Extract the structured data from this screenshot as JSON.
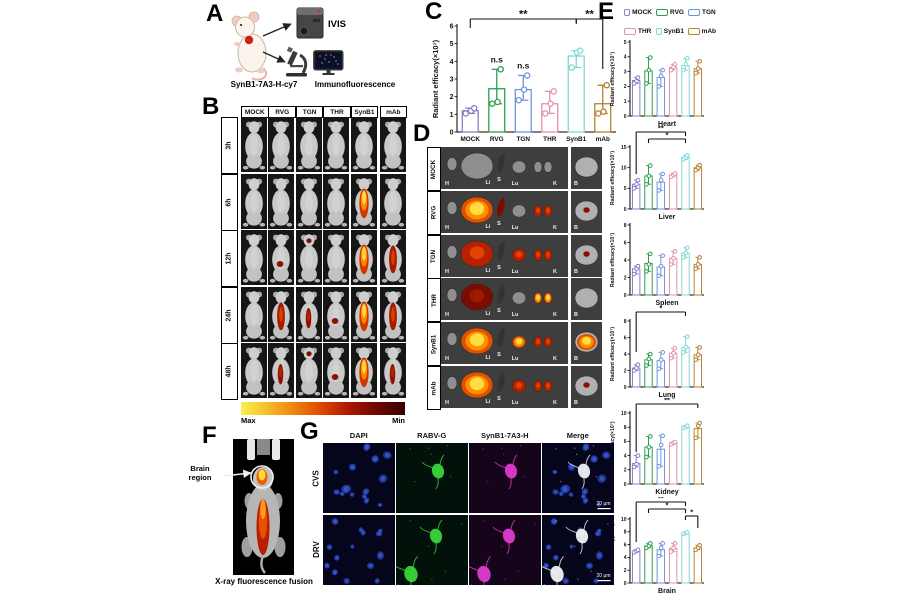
{
  "panels": {
    "a": "A",
    "b": "B",
    "c": "C",
    "d": "D",
    "e": "E",
    "f": "F",
    "g": "G"
  },
  "groups": [
    "MOCK",
    "RVG",
    "TGN",
    "THR",
    "SynB1",
    "mAb"
  ],
  "colors": {
    "MOCK": "#8a7ec9",
    "RVG": "#2ca04c",
    "TGN": "#6b96dd",
    "THR": "#e292a8",
    "SynB1": "#82d7d5",
    "mAb": "#b5822f"
  },
  "panelA": {
    "ivis": "IVIS",
    "probe": "SynB1-7A3-H-cy7",
    "immuno": "Immunofluorescence"
  },
  "panelB": {
    "columns": [
      "MOCK",
      "RVG",
      "TGN",
      "THR",
      "SynB1",
      "mAb"
    ],
    "rows": [
      "3h",
      "6h",
      "12h",
      "24h",
      "48h"
    ],
    "signals": [
      [
        null,
        null,
        null,
        null,
        null,
        null
      ],
      [
        null,
        null,
        null,
        null,
        "bright",
        null
      ],
      [
        null,
        "spot",
        "dot",
        null,
        "bright",
        "long"
      ],
      [
        null,
        "long",
        "streak",
        "spot",
        "bright",
        "long"
      ],
      [
        null,
        "streak",
        "dot",
        "spot",
        "bright",
        "streak"
      ]
    ],
    "colorbar_max": "Max",
    "colorbar_min": "Min"
  },
  "panelD": {
    "rows": [
      "MOCK",
      "RVG",
      "TGN",
      "THR",
      "SynB1",
      "mAb"
    ],
    "organ_labels": [
      "H",
      "Li",
      "S",
      "Lu",
      "K"
    ],
    "brain_label": "B",
    "intensity": {
      "MOCK": {
        "Li": "gray",
        "S": "dark",
        "Lu": "gray",
        "K": "gray",
        "B": "gray"
      },
      "RVG": {
        "Li": "yellow",
        "S": "red",
        "Lu": "gray",
        "K": "red",
        "B": "dot"
      },
      "TGN": {
        "Li": "red",
        "S": "dark",
        "Lu": "red",
        "K": "red",
        "B": "dot"
      },
      "THR": {
        "Li": "darkred",
        "S": "dark",
        "Lu": "gray",
        "K": "yellow",
        "B": "gray"
      },
      "SynB1": {
        "Li": "yellow",
        "S": "dark",
        "Lu": "yellow",
        "K": "red",
        "B": "bright"
      },
      "mAb": {
        "Li": "yellow",
        "S": "dark",
        "Lu": "red",
        "K": "red",
        "B": "dot"
      }
    }
  },
  "panelF": {
    "annotation_line1": "Brain",
    "annotation_line2": "region",
    "caption": "X-ray fluorescence fusion"
  },
  "panelG": {
    "columns": [
      "DAPI",
      "RABV-G",
      "SynB1-7A3-H",
      "Merge"
    ],
    "rows": [
      "CVS",
      "DRV"
    ],
    "scale": "20 μm"
  },
  "chart_data": [
    {
      "id": "c",
      "type": "bar",
      "title": "",
      "ylabel": "Radiant efficacy(×10⁷)",
      "categories": [
        "MOCK",
        "RVG",
        "TGN",
        "THR",
        "SynB1",
        "mAb"
      ],
      "values": [
        1.2,
        2.45,
        2.4,
        1.6,
        4.3,
        1.6
      ],
      "points": [
        [
          1.05,
          1.2,
          1.35
        ],
        [
          1.6,
          1.7,
          3.55
        ],
        [
          1.8,
          2.4,
          3.2
        ],
        [
          1.05,
          1.6,
          2.3
        ],
        [
          3.65,
          4.5,
          4.6
        ],
        [
          1.05,
          1.15,
          2.65
        ]
      ],
      "ylim": [
        0,
        6
      ],
      "yticks": [
        0,
        1,
        2,
        3,
        4,
        5,
        6
      ],
      "show_xlabels": true,
      "ns": [
        {
          "index": 1,
          "label": "n.s"
        },
        {
          "index": 2,
          "label": "n.s"
        }
      ],
      "sig": [
        {
          "x1": 0,
          "x2": 4,
          "label": "**",
          "level": 0,
          "d1": 9,
          "d2": 4
        },
        {
          "x1": 4,
          "x2": 5,
          "label": "**",
          "level": 0,
          "d1": 5,
          "d2": 50
        }
      ]
    },
    {
      "id": "heart",
      "type": "bar",
      "title": "Heart",
      "ylabel": "Radiant efficacy(×10⁷)",
      "categories": [
        "MOCK",
        "RVG",
        "TGN",
        "THR",
        "SynB1",
        "mAb"
      ],
      "values": [
        2.4,
        3.05,
        2.6,
        3.3,
        3.4,
        3.2
      ],
      "points": [
        [
          2.2,
          2.35,
          2.6
        ],
        [
          2.2,
          3.1,
          3.95
        ],
        [
          2.0,
          2.7,
          3.1
        ],
        [
          3.1,
          3.3,
          3.5
        ],
        [
          3.1,
          3.5,
          3.9
        ],
        [
          2.9,
          3.2,
          3.7
        ]
      ],
      "ylim": [
        0,
        5
      ],
      "yticks": [
        0,
        1,
        2,
        3,
        4,
        5
      ],
      "ns": [],
      "sig": []
    },
    {
      "id": "liver",
      "type": "bar",
      "title": "Liver",
      "ylabel": "Radiant efficacy(×10⁷)",
      "categories": [
        "MOCK",
        "RVG",
        "TGN",
        "THR",
        "SynB1",
        "mAb"
      ],
      "values": [
        6,
        8,
        6.5,
        8.2,
        12.5,
        10
      ],
      "points": [
        [
          5,
          6,
          7
        ],
        [
          6,
          8,
          10.5
        ],
        [
          4.5,
          7,
          8.5
        ],
        [
          7.8,
          8.2,
          8.6
        ],
        [
          12,
          12.5,
          13
        ],
        [
          9.4,
          10,
          10.6
        ]
      ],
      "ylim": [
        0,
        15
      ],
      "yticks": [
        0,
        5,
        10,
        15
      ],
      "ns": [],
      "sig": [
        {
          "x1": 0,
          "x2": 4,
          "label": "**",
          "level": 0,
          "d1": 42,
          "d2": 4
        },
        {
          "x1": 1,
          "x2": 4,
          "label": "*",
          "level": 1,
          "d1": 4,
          "d2": 4
        }
      ]
    },
    {
      "id": "spleen",
      "type": "bar",
      "title": "Spleen",
      "ylabel": "Radiant efficacy(×10⁷)",
      "categories": [
        "MOCK",
        "RVG",
        "TGN",
        "THR",
        "SynB1",
        "mAb"
      ],
      "values": [
        3,
        3.6,
        3.2,
        4.2,
        4.8,
        3.5
      ],
      "points": [
        [
          2.4,
          3,
          3.3
        ],
        [
          2.7,
          3.5,
          4.7
        ],
        [
          2.2,
          3.3,
          4.5
        ],
        [
          3.5,
          4.2,
          5
        ],
        [
          4.3,
          4.8,
          5.4
        ],
        [
          3,
          3.5,
          4.3
        ]
      ],
      "ylim": [
        0,
        8
      ],
      "yticks": [
        0,
        2,
        4,
        6,
        8
      ],
      "ns": [],
      "sig": []
    },
    {
      "id": "lung",
      "type": "bar",
      "title": "Lung",
      "ylabel": "Radiant efficacy(×10⁷)",
      "categories": [
        "MOCK",
        "RVG",
        "TGN",
        "THR",
        "SynB1",
        "mAb"
      ],
      "values": [
        2.3,
        3.3,
        3.2,
        4.1,
        4.8,
        3.9
      ],
      "points": [
        [
          2,
          2.3,
          2.7
        ],
        [
          2.6,
          3.4,
          4
        ],
        [
          2.2,
          3.3,
          4.2
        ],
        [
          3.5,
          4.1,
          4.7
        ],
        [
          4.2,
          4.8,
          6.1
        ],
        [
          3.3,
          3.9,
          4.8
        ]
      ],
      "ylim": [
        0,
        8
      ],
      "yticks": [
        0,
        2,
        4,
        6,
        8
      ],
      "ns": [],
      "sig": [
        {
          "x1": 0,
          "x2": 4,
          "label": "*",
          "level": 0,
          "d1": 40,
          "d2": 4
        }
      ]
    },
    {
      "id": "kidney",
      "type": "bar",
      "title": "Kidney",
      "ylabel": "Radiant efficacy(×10⁷)",
      "categories": [
        "MOCK",
        "RVG",
        "TGN",
        "THR",
        "SynB1",
        "mAb"
      ],
      "values": [
        2.9,
        5.2,
        4.9,
        5.8,
        8,
        7.8
      ],
      "points": [
        [
          2.4,
          2.8,
          4
        ],
        [
          3.8,
          5.2,
          6.7
        ],
        [
          2.5,
          5.5,
          6.8
        ],
        [
          5.6,
          5.8,
          5.9
        ],
        [
          7.9,
          8,
          8.2
        ],
        [
          6.5,
          8.2,
          8.6
        ]
      ],
      "ylim": [
        0,
        10
      ],
      "yticks": [
        0,
        2,
        4,
        6,
        8,
        10
      ],
      "ns": [],
      "sig": [
        {
          "x1": 0,
          "x2": 5,
          "label": "**",
          "level": 0,
          "d1": 48,
          "d2": 4
        }
      ]
    },
    {
      "id": "brain",
      "type": "bar",
      "title": "Brain",
      "ylabel": "Radiant efficacy(×10⁷)",
      "categories": [
        "MOCK",
        "RVG",
        "TGN",
        "THR",
        "SynB1",
        "mAb"
      ],
      "values": [
        5,
        5.8,
        5.2,
        5.4,
        7.8,
        5.5
      ],
      "points": [
        [
          4.8,
          5,
          5.2
        ],
        [
          5.5,
          5.8,
          6.2
        ],
        [
          4.2,
          5.5,
          6.2
        ],
        [
          4.9,
          5.5,
          6.2
        ],
        [
          7.7,
          7.8,
          7.9
        ],
        [
          5.2,
          5.5,
          5.9
        ]
      ],
      "ylim": [
        0,
        10
      ],
      "yticks": [
        0,
        2,
        4,
        6,
        8,
        10
      ],
      "ns": [],
      "sig": [
        {
          "x1": 0,
          "x2": 4,
          "label": "**",
          "level": 0,
          "d1": 40,
          "d2": 4
        },
        {
          "x1": 1,
          "x2": 4,
          "label": "*",
          "level": 1,
          "d1": 4,
          "d2": 4
        },
        {
          "x1": 4,
          "x2": 5,
          "label": "*",
          "level": 2,
          "d1": 4,
          "d2": 12
        }
      ]
    }
  ]
}
